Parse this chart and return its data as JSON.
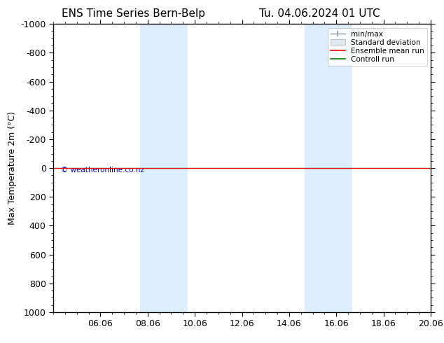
{
  "title_left": "ENS Time Series Bern-Belp",
  "title_right": "Tu. 04.06.2024 01 UTC",
  "ylabel": "Max Temperature 2m (°C)",
  "ylim_bottom": 1000,
  "ylim_top": -1000,
  "yticks": [
    -1000,
    -800,
    -600,
    -400,
    -200,
    0,
    200,
    400,
    600,
    800,
    1000
  ],
  "xtick_labels": [
    "06.06",
    "08.06",
    "10.06",
    "12.06",
    "14.06",
    "16.06",
    "18.06",
    "20.06"
  ],
  "xtick_positions": [
    2,
    4,
    6,
    8,
    10,
    12,
    14,
    16
  ],
  "xlim": [
    0,
    16
  ],
  "shaded_bands": [
    {
      "x_start": 3.67,
      "x_end": 4.5,
      "color": "#ddeeff"
    },
    {
      "x_start": 4.5,
      "x_end": 5.7,
      "color": "#ddeeff"
    },
    {
      "x_start": 10.67,
      "x_end": 11.5,
      "color": "#ddeeff"
    },
    {
      "x_start": 11.5,
      "x_end": 12.67,
      "color": "#ddeeff"
    }
  ],
  "control_run_y": 0,
  "ensemble_mean_y": 0,
  "background_color": "#ffffff",
  "plot_bg_color": "#ffffff",
  "legend_items": [
    "min/max",
    "Standard deviation",
    "Ensemble mean run",
    "Controll run"
  ],
  "legend_colors": [
    "#999999",
    "#cccccc",
    "#ff0000",
    "#008000"
  ],
  "copyright_text": "© weatheronline.co.nz",
  "copyright_color": "#0000cc",
  "title_fontsize": 11,
  "axis_fontsize": 9,
  "figsize": [
    6.34,
    4.9
  ],
  "dpi": 100
}
